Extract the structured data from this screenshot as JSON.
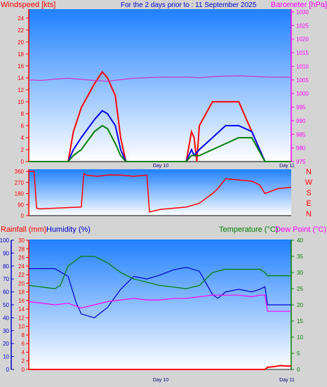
{
  "header": {
    "title": "For the 2 days prior to : 11 September 2025",
    "wind_label": "Windspeed [kts]",
    "baro_label": "Barometer [hPa]"
  },
  "colors": {
    "bg_top": "#1f80ff",
    "bg_bottom": "#ffffff",
    "wind_max": "#ff0000",
    "wind_avg": "#0000ff",
    "wind_min": "#008000",
    "pressure": "#cc33cc",
    "direction": "#ff0000",
    "temperature": "#008000",
    "dewpoint": "#ff00ff",
    "humidity": "#0000cc",
    "rainfall": "#ff0000"
  },
  "bottom_labels": {
    "rainfall": "Rainfall (mm)",
    "humidity": "Humidity (%)",
    "temperature": "Temperature (°C)",
    "dewpoint": "Dew Point (°C)"
  },
  "compass": [
    "N",
    "W",
    "S",
    "E",
    "N"
  ],
  "chart_data": [
    {
      "type": "line",
      "name": "wind_pressure",
      "x_ticks": [
        "Day 10",
        "Day 11"
      ],
      "y_left_ticks": [
        0,
        2,
        4,
        6,
        8,
        10,
        12,
        14,
        16,
        18,
        20,
        22,
        24
      ],
      "y_right_ticks": [
        975,
        980,
        985,
        990,
        995,
        1000,
        1005,
        1010,
        1015,
        1020,
        1025,
        1030
      ],
      "ylim_left": [
        0,
        25.5
      ],
      "ylim_right": [
        975,
        1031
      ],
      "series": [
        {
          "key": "wind_max",
          "x": [
            0,
            0.03,
            0.15,
            0.17,
            0.2,
            0.25,
            0.28,
            0.3,
            0.33,
            0.35,
            0.37,
            0.4,
            0.5,
            0.6,
            0.62,
            0.63,
            0.64,
            0.65,
            0.7,
            0.75,
            0.8,
            0.85,
            0.9,
            1.0
          ],
          "values": [
            0,
            0,
            0,
            5,
            9,
            13,
            15,
            14,
            11,
            4,
            0,
            0,
            0,
            0,
            5,
            4,
            0,
            6,
            10,
            10,
            10,
            5,
            0,
            0
          ]
        },
        {
          "key": "wind_avg",
          "x": [
            0,
            0.15,
            0.17,
            0.2,
            0.25,
            0.28,
            0.3,
            0.33,
            0.35,
            0.37,
            0.6,
            0.62,
            0.63,
            0.65,
            0.7,
            0.75,
            0.8,
            0.85,
            0.9,
            1.0
          ],
          "values": [
            0,
            0,
            2,
            4,
            7,
            8.5,
            8,
            6,
            2,
            0,
            0,
            2,
            1,
            2,
            4,
            6,
            6,
            5,
            0,
            0
          ]
        },
        {
          "key": "wind_min",
          "x": [
            0,
            0.15,
            0.17,
            0.2,
            0.25,
            0.28,
            0.3,
            0.33,
            0.35,
            0.37,
            0.6,
            0.62,
            0.65,
            0.7,
            0.75,
            0.8,
            0.85,
            0.9,
            1.0
          ],
          "values": [
            0,
            0,
            1,
            2,
            5,
            6,
            5.5,
            3,
            1,
            0,
            0,
            1,
            1,
            2,
            3,
            4,
            4,
            0,
            0
          ]
        },
        {
          "key": "pressure",
          "axis": "right",
          "x": [
            0,
            0.05,
            0.1,
            0.15,
            0.2,
            0.25,
            0.3,
            0.35,
            0.4,
            0.5,
            0.6,
            0.65,
            0.7,
            0.75,
            0.8,
            0.85,
            0.9,
            0.95,
            1.0
          ],
          "values": [
            1005,
            1004.8,
            1005.3,
            1005.6,
            1005.2,
            1004.8,
            1004.5,
            1005.1,
            1005.6,
            1006,
            1006,
            1005.8,
            1006.2,
            1006.4,
            1006.5,
            1006.3,
            1006.1,
            1006,
            1006
          ]
        }
      ]
    },
    {
      "type": "line",
      "name": "wind_direction",
      "x_ticks": [],
      "y_ticks": [
        0,
        90,
        180,
        270,
        360
      ],
      "ylim": [
        0,
        360
      ],
      "series": [
        {
          "key": "direction",
          "x": [
            0,
            0.02,
            0.03,
            0.04,
            0.2,
            0.21,
            0.22,
            0.26,
            0.3,
            0.35,
            0.4,
            0.45,
            0.46,
            0.5,
            0.55,
            0.6,
            0.65,
            0.7,
            0.72,
            0.75,
            0.8,
            0.85,
            0.88,
            0.9,
            0.95,
            1.0
          ],
          "values": [
            360,
            360,
            60,
            55,
            70,
            340,
            330,
            320,
            330,
            330,
            320,
            330,
            30,
            50,
            60,
            70,
            100,
            180,
            220,
            300,
            290,
            280,
            250,
            180,
            220,
            230
          ]
        }
      ]
    },
    {
      "type": "line",
      "name": "temp_hum_rain",
      "x_ticks": [
        "Day 10",
        "Day 11"
      ],
      "y_rain_ticks": [
        0,
        2,
        4,
        6,
        8,
        10,
        12,
        14,
        16,
        18,
        20,
        22,
        24,
        26,
        28,
        30
      ],
      "y_hum_ticks": [
        0,
        10,
        20,
        30,
        40,
        50,
        60,
        70,
        80,
        90,
        100
      ],
      "y_temp_ticks": [
        0,
        5,
        10,
        15,
        20,
        25,
        30,
        35,
        40
      ],
      "ylim_rain": [
        0,
        30
      ],
      "ylim_hum": [
        0,
        100
      ],
      "ylim_temp": [
        0,
        40
      ],
      "series": [
        {
          "key": "humidity",
          "axis": "hum",
          "x": [
            0,
            0.1,
            0.15,
            0.18,
            0.2,
            0.25,
            0.3,
            0.35,
            0.4,
            0.45,
            0.5,
            0.55,
            0.6,
            0.65,
            0.7,
            0.72,
            0.75,
            0.8,
            0.85,
            0.88,
            0.9,
            0.91,
            1.0
          ],
          "values": [
            78,
            78,
            72,
            52,
            43,
            40,
            48,
            62,
            72,
            70,
            73,
            77,
            79,
            76,
            58,
            55,
            60,
            62,
            60,
            62,
            64,
            50,
            50
          ]
        },
        {
          "key": "temperature",
          "axis": "temp",
          "x": [
            0,
            0.1,
            0.12,
            0.15,
            0.2,
            0.25,
            0.3,
            0.35,
            0.4,
            0.45,
            0.5,
            0.55,
            0.6,
            0.65,
            0.7,
            0.75,
            0.8,
            0.85,
            0.88,
            0.9,
            0.91,
            1.0
          ],
          "values": [
            26,
            25,
            26,
            32,
            35,
            35,
            33,
            30,
            28,
            27,
            26,
            25.5,
            25,
            26,
            30,
            31,
            31,
            31,
            31,
            30,
            29,
            29
          ]
        },
        {
          "key": "dewpoint",
          "axis": "temp",
          "x": [
            0,
            0.1,
            0.15,
            0.2,
            0.25,
            0.3,
            0.35,
            0.4,
            0.45,
            0.5,
            0.55,
            0.6,
            0.65,
            0.7,
            0.75,
            0.8,
            0.85,
            0.88,
            0.9,
            0.91,
            1.0
          ],
          "values": [
            21,
            20,
            20.5,
            19,
            20,
            21,
            21.5,
            22,
            21.5,
            21.5,
            22,
            22,
            22.5,
            23,
            23,
            23,
            22.5,
            23,
            23,
            18,
            18
          ]
        },
        {
          "key": "rainfall",
          "axis": "rain",
          "x": [
            0,
            0.88,
            0.9,
            0.91,
            0.93,
            0.96,
            0.98,
            1.0
          ],
          "values": [
            0,
            0,
            0,
            0.5,
            0.6,
            0.9,
            0.8,
            0.8
          ]
        }
      ]
    }
  ]
}
